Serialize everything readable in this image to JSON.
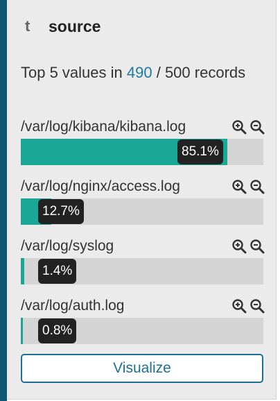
{
  "field": {
    "type_icon_label": "t",
    "name": "source"
  },
  "summary": {
    "prefix": "Top 5 values in ",
    "found": "490",
    "separator": " / ",
    "total": "500",
    "suffix": " records"
  },
  "values": [
    {
      "label": "/var/log/kibana/kibana.log",
      "percent_text": "85.1%",
      "percent": 85.1
    },
    {
      "label": "/var/log/nginx/access.log",
      "percent_text": "12.7%",
      "percent": 12.7
    },
    {
      "label": "/var/log/syslog",
      "percent_text": "1.4%",
      "percent": 1.4
    },
    {
      "label": "/var/log/auth.log",
      "percent_text": "0.8%",
      "percent": 0.8
    }
  ],
  "icons": {
    "zoom_in": "magnifier-plus-icon",
    "zoom_out": "magnifier-minus-icon"
  },
  "visualize_button": "Visualize",
  "colors": {
    "bar_fill": "#1ba795",
    "bar_track": "#d4d4d4",
    "badge": "#222222",
    "link": "#1f7aa3",
    "accent_strip": "#0f5774"
  }
}
